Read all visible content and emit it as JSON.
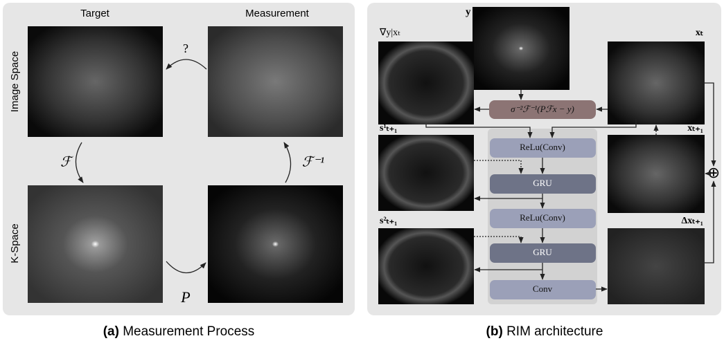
{
  "panel_a": {
    "columns": [
      "Target",
      "Measurement"
    ],
    "rows": [
      "Image Space",
      "K-Space"
    ],
    "question": "?",
    "forward": "ℱ",
    "inverse": "ℱ⁻¹",
    "mask": "P",
    "caption": {
      "label": "(a)",
      "text": "Measurement Process"
    }
  },
  "panel_b": {
    "images": {
      "y": "y",
      "gradient": "∇y|xₜ",
      "xt": "xₜ",
      "xt1": "xₜ₊₁",
      "s1": "s¹ₜ₊₁",
      "s2": "s²ₜ₊₁",
      "dx": "Δxₜ₊₁"
    },
    "operator": "σ⁻²ℱ⁻¹(Pℱx − y)",
    "blocks": [
      "ReLu(Conv)",
      "GRU",
      "ReLu(Conv)",
      "GRU",
      "Conv"
    ],
    "sum": "⊕",
    "caption": {
      "label": "(b)",
      "text": "RIM architecture"
    }
  }
}
